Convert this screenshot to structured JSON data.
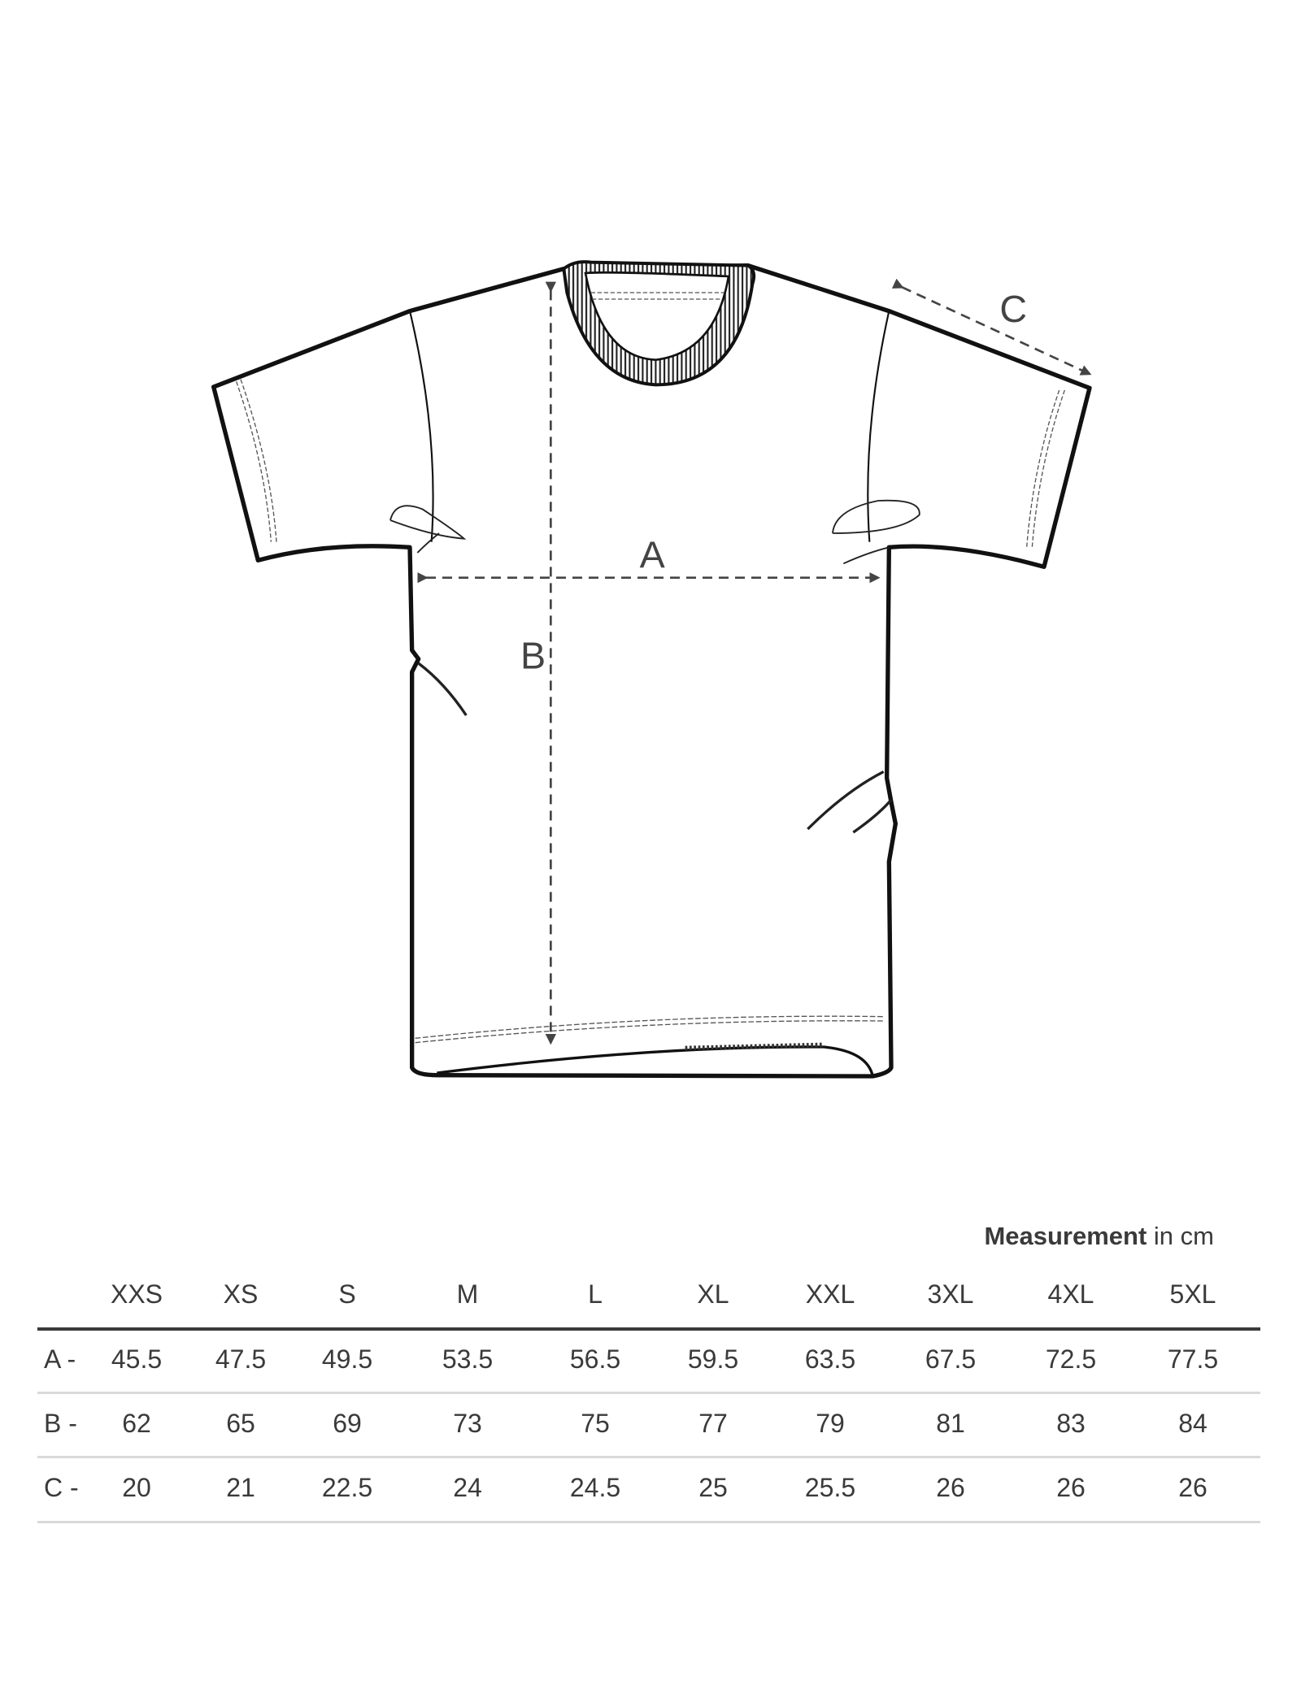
{
  "diagram": {
    "labels": {
      "a": "A",
      "b": "B",
      "c": "C"
    }
  },
  "table": {
    "title_bold": "Measurement",
    "title_unit": "in cm",
    "sizes": [
      "XXS",
      "XS",
      "S",
      "M",
      "L",
      "XL",
      "XXL",
      "3XL",
      "4XL",
      "5XL"
    ],
    "rows": [
      {
        "label": "A -",
        "values": [
          "45.5",
          "47.5",
          "49.5",
          "53.5",
          "56.5",
          "59.5",
          "63.5",
          "67.5",
          "72.5",
          "77.5"
        ]
      },
      {
        "label": "B -",
        "values": [
          "62",
          "65",
          "69",
          "73",
          "75",
          "77",
          "79",
          "81",
          "83",
          "84"
        ]
      },
      {
        "label": "C -",
        "values": [
          "20",
          "21",
          "22.5",
          "24",
          "24.5",
          "25",
          "25.5",
          "26",
          "26",
          "26"
        ]
      }
    ]
  },
  "colors": {
    "ink": "#111111",
    "text": "#3a3a3a",
    "divider": "#d9d9db"
  }
}
